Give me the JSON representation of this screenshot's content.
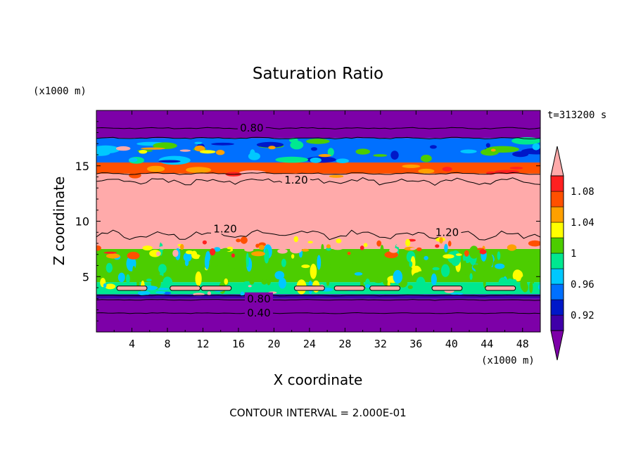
{
  "chart_data": {
    "type": "heatmap",
    "title": "Saturation Ratio",
    "xlabel": "X coordinate",
    "ylabel": "Z coordinate",
    "x_unit": "(x1000 m)",
    "y_unit": "(x1000 m)",
    "time_label": "t=313200 s",
    "footer": "CONTOUR INTERVAL = 2.000E-01",
    "xlim": [
      0,
      50
    ],
    "ylim": [
      0,
      20
    ],
    "x_ticks": [
      4,
      8,
      12,
      16,
      20,
      24,
      28,
      32,
      36,
      40,
      44,
      48
    ],
    "y_ticks": [
      5,
      10,
      15
    ],
    "colorbar": {
      "tick_labels": [
        "1.08",
        "1.04",
        "1",
        "0.96",
        "0.92"
      ],
      "levels": [
        0.9,
        0.92,
        0.94,
        0.96,
        0.98,
        1.0,
        1.02,
        1.04,
        1.06,
        1.08,
        1.1
      ],
      "colors": [
        "#7d00a8",
        "#3f00a8",
        "#0018c8",
        "#0070ff",
        "#00c8ff",
        "#00e890",
        "#4ccd00",
        "#ffff00",
        "#ffa000",
        "#ff5000",
        "#ff2020",
        "#ffaaaa"
      ]
    },
    "layers": [
      {
        "z_bottom": 0.0,
        "z_top": 3.0,
        "color": "#7d00a8"
      },
      {
        "z_bottom": 3.0,
        "z_top": 3.4,
        "color": "#3f00a8"
      },
      {
        "z_bottom": 3.4,
        "z_top": 4.5,
        "color": "#00e890"
      },
      {
        "z_bottom": 4.5,
        "z_top": 7.5,
        "color": "#4ccd00"
      },
      {
        "z_bottom": 7.5,
        "z_top": 14.3,
        "color": "#ffaaaa"
      },
      {
        "z_bottom": 14.3,
        "z_top": 15.3,
        "color": "#ff5000"
      },
      {
        "z_bottom": 15.3,
        "z_top": 17.5,
        "color": "#0070ff"
      },
      {
        "z_bottom": 17.5,
        "z_top": 20.0,
        "color": "#7d00a8"
      }
    ],
    "contour_labels": [
      {
        "text": "0.80",
        "x": 17.5,
        "z": 18.4
      },
      {
        "text": "1.20",
        "x": 22.5,
        "z": 13.7
      },
      {
        "text": "1.20",
        "x": 14.5,
        "z": 9.3
      },
      {
        "text": "1.20",
        "x": 39.5,
        "z": 9.0
      },
      {
        "text": "0.80",
        "x": 18.3,
        "z": 3.0
      },
      {
        "text": "0.40",
        "x": 18.3,
        "z": 1.7
      }
    ]
  }
}
